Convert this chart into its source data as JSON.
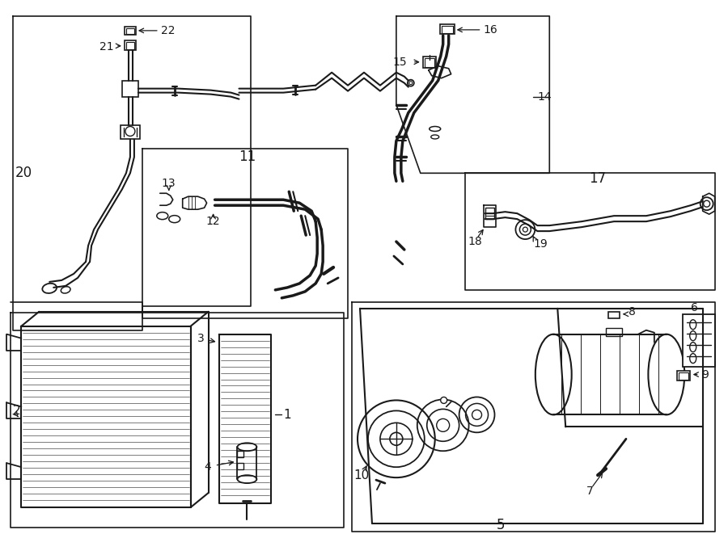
{
  "bg_color": "#ffffff",
  "line_color": "#1a1a1a",
  "lw": 1.2,
  "figsize": [
    9.0,
    6.61
  ],
  "dpi": 100
}
